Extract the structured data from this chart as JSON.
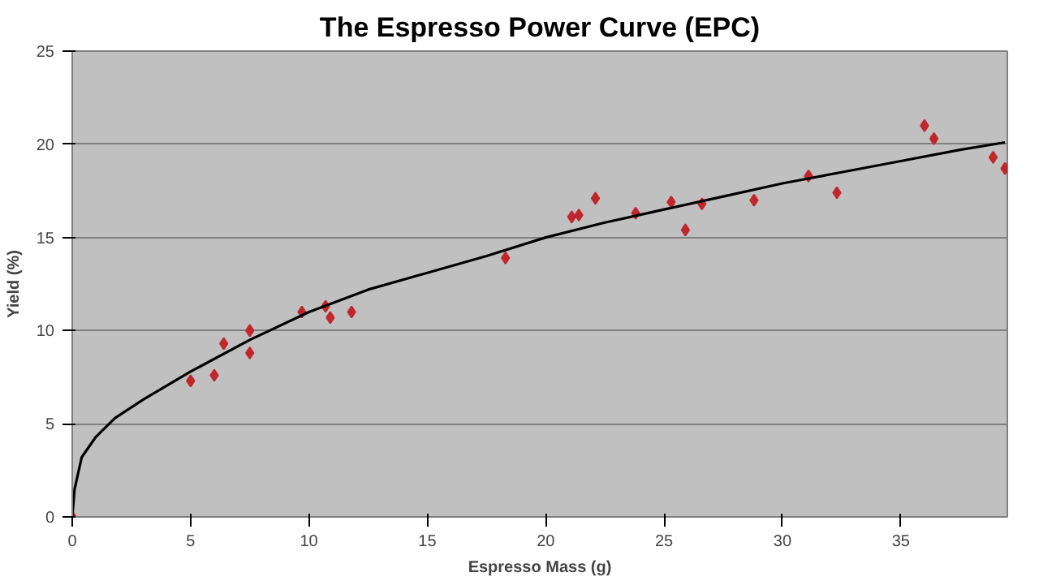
{
  "chart_data": {
    "type": "scatter",
    "title": "The Espresso Power Curve (EPC)",
    "xlabel": "Espresso Mass (g)",
    "ylabel": "Yield (%)",
    "xlim": [
      0,
      39.5
    ],
    "ylim": [
      0,
      25
    ],
    "xticks": [
      0,
      5,
      10,
      15,
      20,
      25,
      30,
      35
    ],
    "yticks": [
      0,
      5,
      10,
      15,
      20,
      25
    ],
    "grid": "y",
    "series": [
      {
        "color": "#c0272d",
        "marker": "diamond",
        "x": [
          0,
          5.0,
          6.0,
          6.4,
          7.5,
          7.5,
          9.7,
          10.7,
          10.9,
          11.8,
          18.3,
          21.1,
          21.4,
          22.1,
          23.8,
          25.3,
          25.9,
          26.6,
          28.8,
          31.1,
          32.3,
          36.0,
          36.4,
          38.9,
          39.4
        ],
        "values": [
          0,
          7.3,
          7.6,
          9.3,
          8.8,
          10.0,
          11.0,
          11.3,
          10.7,
          11.0,
          13.9,
          16.1,
          16.2,
          17.1,
          16.3,
          16.9,
          15.4,
          16.8,
          17.0,
          18.3,
          17.4,
          21.0,
          20.3,
          19.3,
          18.7
        ]
      },
      {
        "type": "line",
        "color": "#000000",
        "marker": "none",
        "line_style": "solid",
        "x": [
          0,
          0.1,
          0.4,
          1,
          1.8,
          3,
          5,
          7.5,
          10,
          12.5,
          15,
          17.5,
          20,
          22.5,
          25,
          27.5,
          30,
          32.5,
          35,
          37.5,
          39.4
        ],
        "values": [
          0,
          1.5,
          3.2,
          4.3,
          5.3,
          6.3,
          7.8,
          9.5,
          11,
          12.2,
          13.1,
          14,
          15,
          15.8,
          16.5,
          17.2,
          17.9,
          18.5,
          19.1,
          19.7,
          20.1
        ]
      }
    ]
  }
}
